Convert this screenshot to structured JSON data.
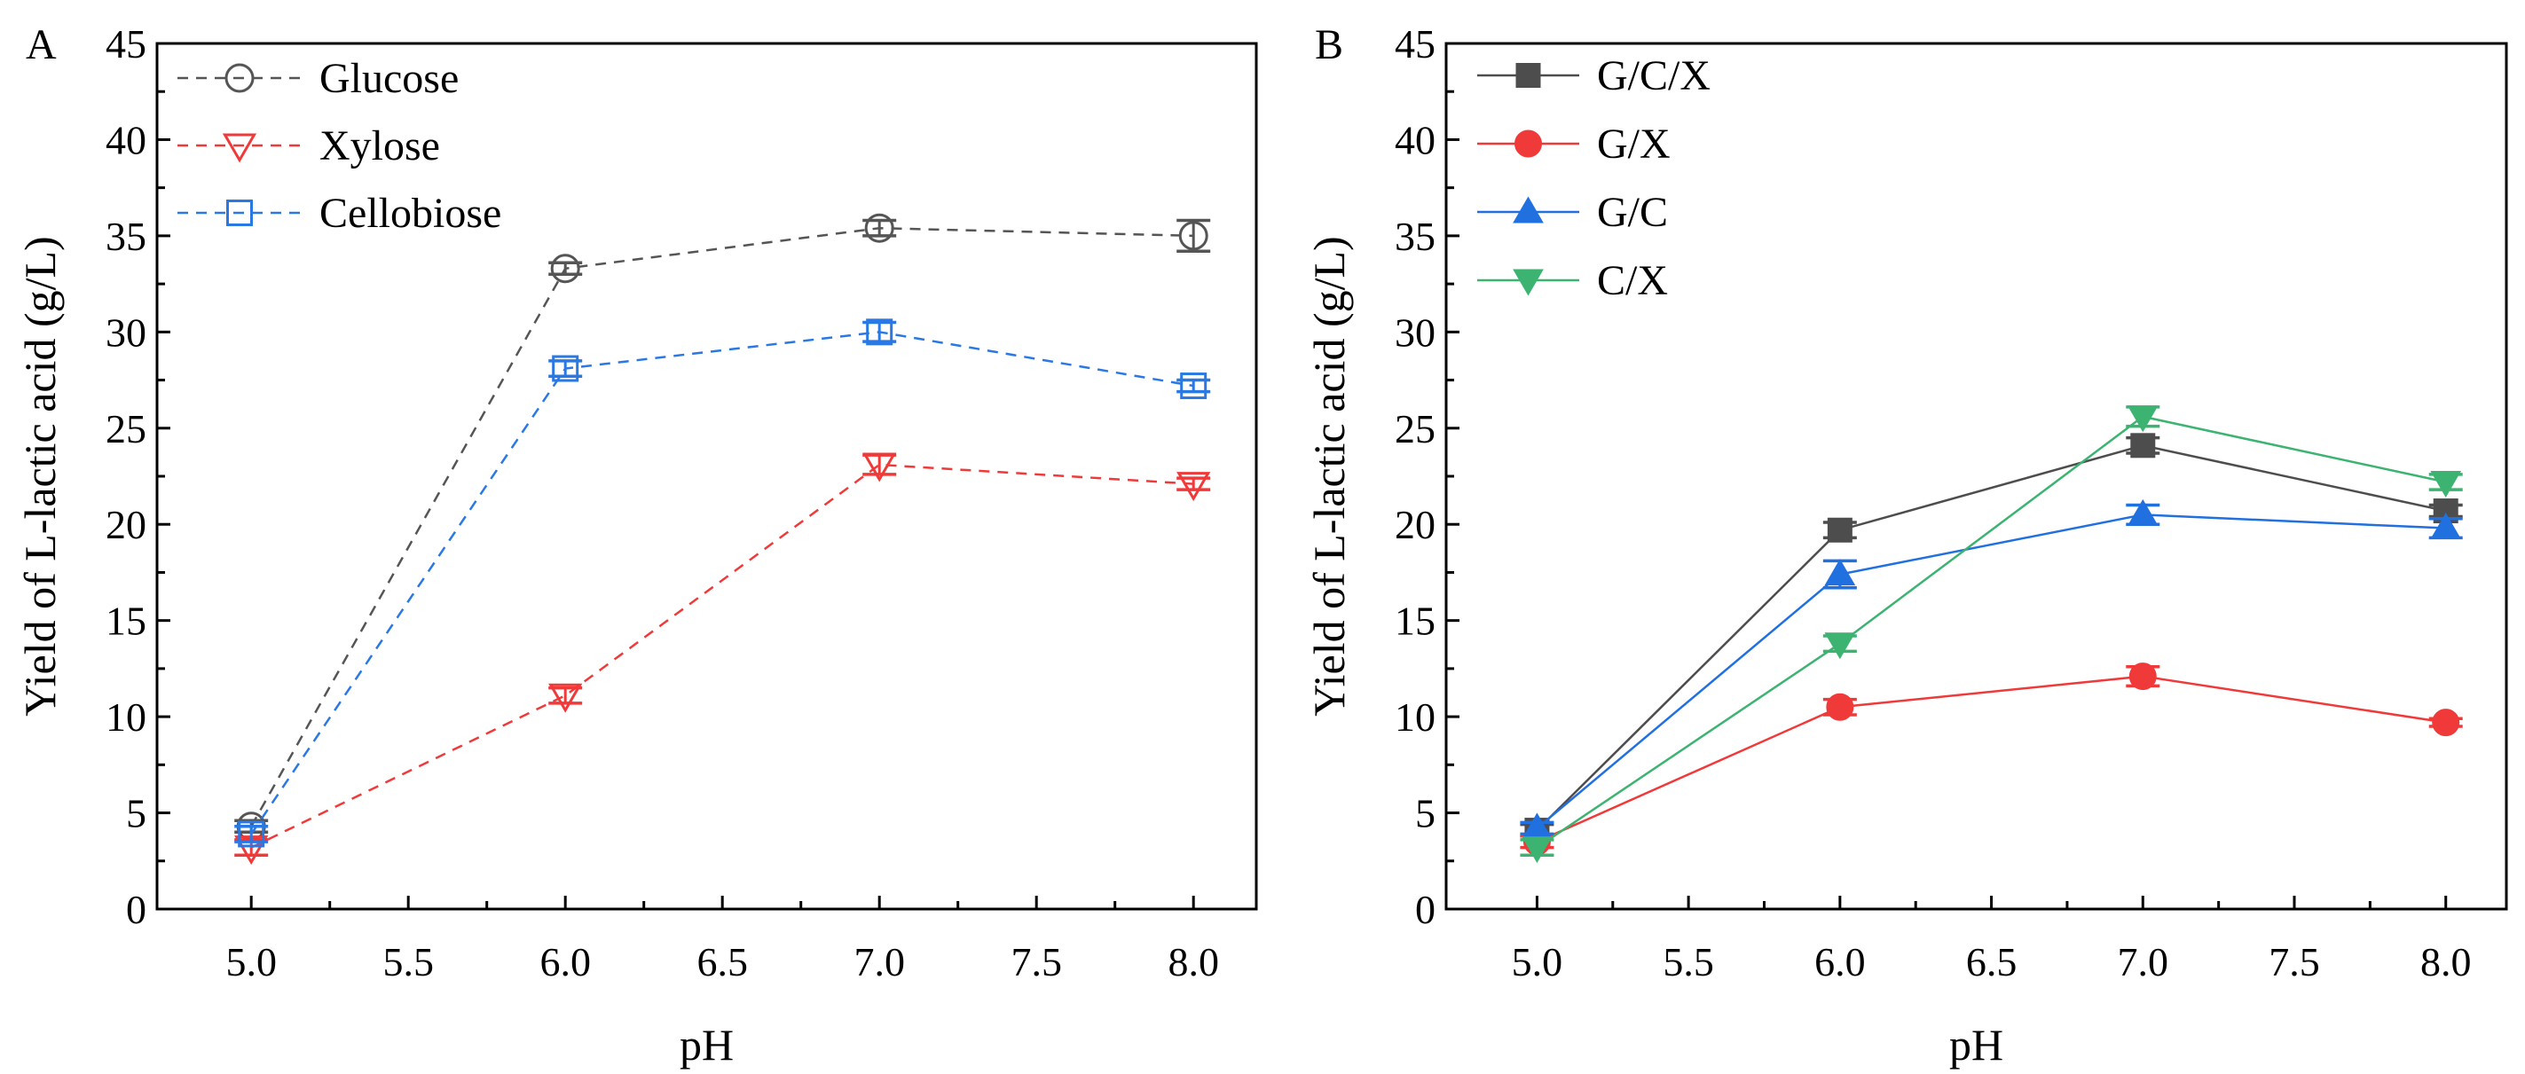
{
  "chart_data": [
    {
      "type": "line",
      "panel_label": "A",
      "xlabel": "pH",
      "ylabel": "Yield of L-lactic acid (g/L)",
      "xlim": [
        4.7,
        8.2
      ],
      "ylim": [
        0,
        45
      ],
      "xticks": [
        "5.0",
        "5.5",
        "6.0",
        "6.5",
        "7.0",
        "7.5",
        "8.0"
      ],
      "yticks": [
        "0",
        "5",
        "10",
        "15",
        "20",
        "25",
        "30",
        "35",
        "40",
        "45"
      ],
      "x": [
        5.0,
        6.0,
        7.0,
        8.0
      ],
      "legend_position": "top-left",
      "series": [
        {
          "name": "Glucose",
          "color": "#555555",
          "marker": "circle-open",
          "line": "dashed",
          "values": [
            4.3,
            33.3,
            35.4,
            35.0
          ],
          "errors": [
            0.3,
            0.3,
            0.4,
            0.8
          ]
        },
        {
          "name": "Xylose",
          "color": "#f03a3a",
          "marker": "triangle-down-open",
          "line": "dashed",
          "values": [
            3.2,
            11.1,
            23.1,
            22.1
          ],
          "errors": [
            0.4,
            0.4,
            0.5,
            0.3
          ]
        },
        {
          "name": "Cellobiose",
          "color": "#2a78e4",
          "marker": "square-open",
          "line": "dashed",
          "values": [
            3.9,
            28.1,
            30.0,
            27.2
          ],
          "errors": [
            0.4,
            0.4,
            0.5,
            0.3
          ]
        }
      ]
    },
    {
      "type": "line",
      "panel_label": "B",
      "xlabel": "pH",
      "ylabel": "Yield of L-lactic acid (g/L)",
      "xlim": [
        4.7,
        8.2
      ],
      "ylim": [
        0,
        45
      ],
      "xticks": [
        "5.0",
        "5.5",
        "6.0",
        "6.5",
        "7.0",
        "7.5",
        "8.0"
      ],
      "yticks": [
        "0",
        "5",
        "10",
        "15",
        "20",
        "25",
        "30",
        "35",
        "40",
        "45"
      ],
      "x": [
        5.0,
        6.0,
        7.0,
        8.0
      ],
      "legend_position": "top-left",
      "series": [
        {
          "name": "G/C/X",
          "color": "#4d4d4d",
          "marker": "square",
          "line": "solid",
          "values": [
            4.1,
            19.7,
            24.1,
            20.7
          ],
          "errors": [
            0.3,
            0.4,
            0.4,
            0.3
          ]
        },
        {
          "name": "G/X",
          "color": "#f03a3a",
          "marker": "circle",
          "line": "solid",
          "values": [
            3.5,
            10.5,
            12.1,
            9.7
          ],
          "errors": [
            0.3,
            0.4,
            0.5,
            0.2
          ]
        },
        {
          "name": "G/C",
          "color": "#2070e0",
          "marker": "triangle-up",
          "line": "solid",
          "values": [
            4.2,
            17.4,
            20.5,
            19.8
          ],
          "errors": [
            0.3,
            0.7,
            0.5,
            0.5
          ]
        },
        {
          "name": "C/X",
          "color": "#3cb371",
          "marker": "triangle-down",
          "line": "solid",
          "values": [
            3.2,
            13.8,
            25.6,
            22.2
          ],
          "errors": [
            0.4,
            0.4,
            0.5,
            0.4
          ]
        }
      ]
    }
  ]
}
